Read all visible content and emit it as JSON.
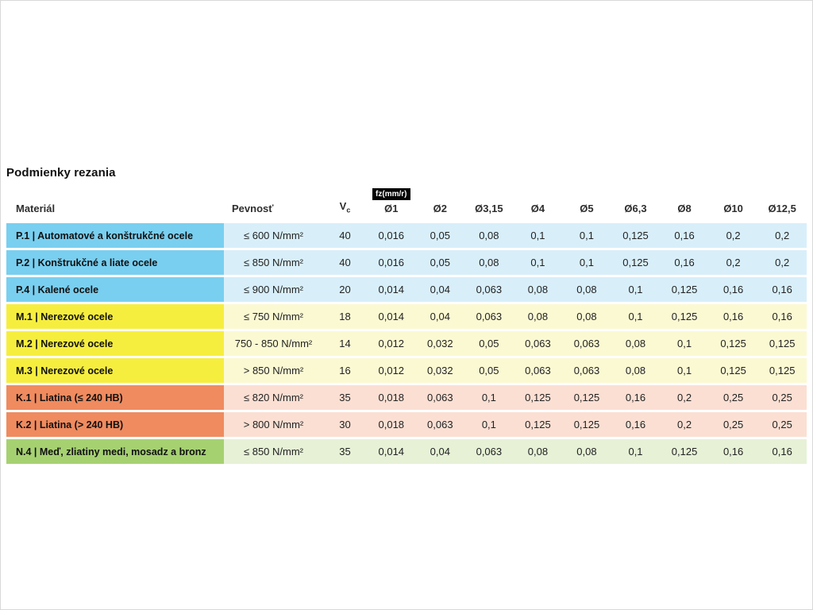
{
  "chart_data": {
    "type": "table",
    "title": "Podmienky rezania",
    "unit_label": "fz(mm/r)",
    "column_headers": {
      "material": "Materiál",
      "strength": "Pevnosť",
      "vc_main": "V",
      "vc_sub": "c"
    },
    "diameters": [
      "Ø1",
      "Ø2",
      "Ø3,15",
      "Ø4",
      "Ø5",
      "Ø6,3",
      "Ø8",
      "Ø10",
      "Ø12,5"
    ],
    "rows": [
      {
        "group": "P",
        "material": "P.1 | Automatové a konštrukčné ocele",
        "strength": "≤ 600 N/mm²",
        "vc": "40",
        "feeds": [
          "0,016",
          "0,05",
          "0,08",
          "0,1",
          "0,1",
          "0,125",
          "0,16",
          "0,2",
          "0,2"
        ]
      },
      {
        "group": "P",
        "material": "P.2 | Konštrukčné a liate ocele",
        "strength": "≤ 850 N/mm²",
        "vc": "40",
        "feeds": [
          "0,016",
          "0,05",
          "0,08",
          "0,1",
          "0,1",
          "0,125",
          "0,16",
          "0,2",
          "0,2"
        ]
      },
      {
        "group": "P",
        "material": "P.4 | Kalené ocele",
        "strength": "≤ 900 N/mm²",
        "vc": "20",
        "feeds": [
          "0,014",
          "0,04",
          "0,063",
          "0,08",
          "0,08",
          "0,1",
          "0,125",
          "0,16",
          "0,16"
        ]
      },
      {
        "group": "M",
        "material": "M.1 | Nerezové ocele",
        "strength": "≤ 750 N/mm²",
        "vc": "18",
        "feeds": [
          "0,014",
          "0,04",
          "0,063",
          "0,08",
          "0,08",
          "0,1",
          "0,125",
          "0,16",
          "0,16"
        ]
      },
      {
        "group": "M",
        "material": "M.2 | Nerezové ocele",
        "strength": "750 - 850 N/mm²",
        "vc": "14",
        "feeds": [
          "0,012",
          "0,032",
          "0,05",
          "0,063",
          "0,063",
          "0,08",
          "0,1",
          "0,125",
          "0,125"
        ]
      },
      {
        "group": "M",
        "material": "M.3 | Nerezové ocele",
        "strength": "> 850 N/mm²",
        "vc": "16",
        "feeds": [
          "0,012",
          "0,032",
          "0,05",
          "0,063",
          "0,063",
          "0,08",
          "0,1",
          "0,125",
          "0,125"
        ]
      },
      {
        "group": "K",
        "material": "K.1 | Liatina (≤ 240 HB)",
        "strength": "≤ 820 N/mm²",
        "vc": "35",
        "feeds": [
          "0,018",
          "0,063",
          "0,1",
          "0,125",
          "0,125",
          "0,16",
          "0,2",
          "0,25",
          "0,25"
        ]
      },
      {
        "group": "K",
        "material": "K.2 | Liatina (> 240 HB)",
        "strength": "> 800 N/mm²",
        "vc": "30",
        "feeds": [
          "0,018",
          "0,063",
          "0,1",
          "0,125",
          "0,125",
          "0,16",
          "0,2",
          "0,25",
          "0,25"
        ]
      },
      {
        "group": "N",
        "material": "N.4 | Meď, zliatiny medi, mosadz a bronz",
        "strength": "≤ 850 N/mm²",
        "vc": "35",
        "feeds": [
          "0,014",
          "0,04",
          "0,063",
          "0,08",
          "0,08",
          "0,1",
          "0,125",
          "0,16",
          "0,16"
        ]
      }
    ]
  },
  "colors": {
    "P": {
      "label_bg": "#79CFF0",
      "cell_bg": "#D8EFFA"
    },
    "M": {
      "label_bg": "#F6EE3E",
      "cell_bg": "#FBF9D2"
    },
    "K": {
      "label_bg": "#EF8B5F",
      "cell_bg": "#FBDFD3"
    },
    "N": {
      "label_bg": "#A6D171",
      "cell_bg": "#E6F1D6"
    },
    "badge_bg": "#000000",
    "badge_text": "#FFFFFF"
  }
}
